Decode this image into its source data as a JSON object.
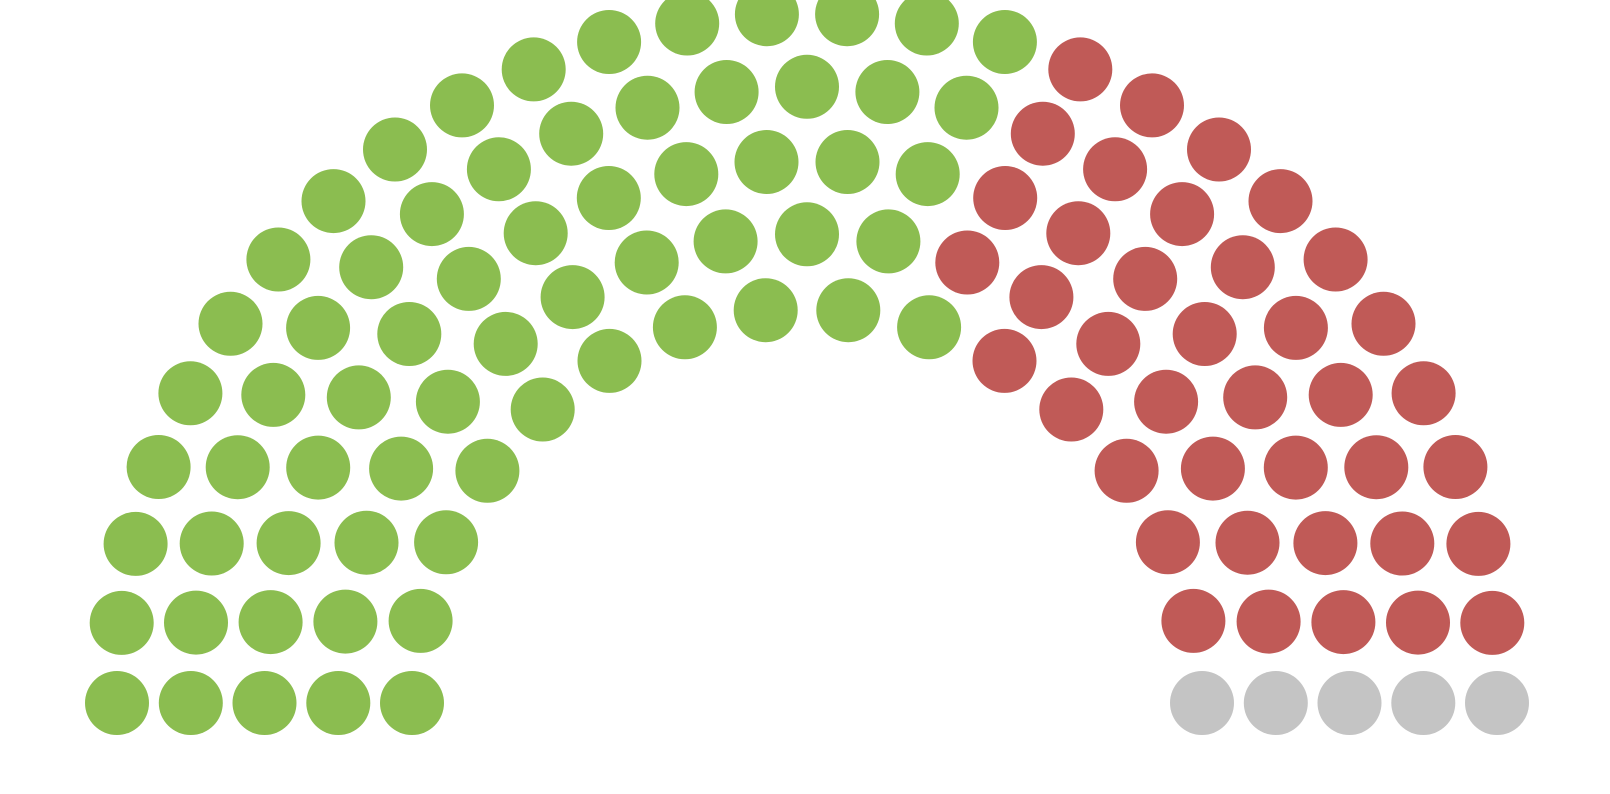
{
  "chart_data": {
    "type": "parliament",
    "title": "",
    "total_seats": 110,
    "rows": 5,
    "series": [
      {
        "value": 66,
        "color": "#8bbd50"
      },
      {
        "value": 39,
        "color": "#c05a57"
      },
      {
        "value": 5,
        "color": "#c4c4c4"
      }
    ]
  }
}
